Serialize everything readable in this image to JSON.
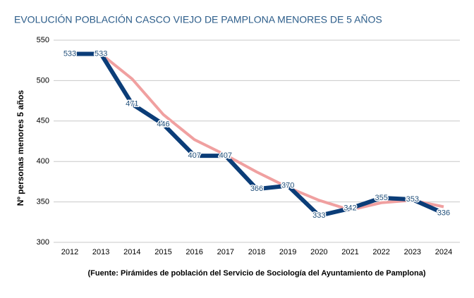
{
  "chart_data": {
    "type": "line",
    "title": "EVOLUCIÓN POBLACIÓN CASCO VIEJO DE PAMPLONA MENORES DE 5 AÑOS",
    "y_label": "Nº personas menores 5 años",
    "source": "(Fuente: Pirámides de población del Servicio de Sociología del Ayuntamiento de Pamplona)",
    "categories": [
      "2012",
      "2013",
      "2014",
      "2015",
      "2016",
      "2017",
      "2018",
      "2019",
      "2020",
      "2021",
      "2022",
      "2023",
      "2024"
    ],
    "series": [
      {
        "color": "#0b3d78",
        "values": [
          533,
          533,
          471,
          446,
          407,
          407,
          366,
          370,
          333,
          342,
          355,
          353,
          336
        ],
        "data_labels": true
      },
      {
        "color": "#f0a0a0",
        "values": [
          null,
          533,
          502,
          458,
          427,
          408,
          387,
          368,
          352,
          340,
          349,
          352,
          344
        ],
        "data_labels": false
      }
    ],
    "ylim": [
      300,
      550
    ],
    "yticks": [
      300,
      350,
      400,
      450,
      500,
      550
    ],
    "grid": true
  }
}
